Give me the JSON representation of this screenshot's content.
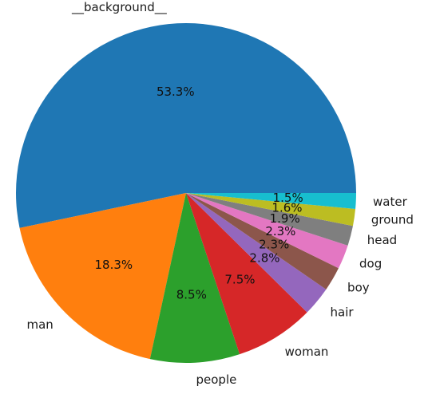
{
  "chart_data": {
    "type": "pie",
    "title": "",
    "start_angle_deg": 0,
    "direction": "counterclockwise",
    "slices": [
      {
        "label": "__background__",
        "pct_text": "53.3%",
        "value": 53.3,
        "color": "#1f77b4"
      },
      {
        "label": "man",
        "pct_text": "18.3%",
        "value": 18.3,
        "color": "#ff7f0e"
      },
      {
        "label": "people",
        "pct_text": "8.5%",
        "value": 8.5,
        "color": "#2ca02c"
      },
      {
        "label": "woman",
        "pct_text": "7.5%",
        "value": 7.5,
        "color": "#d62728"
      },
      {
        "label": "hair",
        "pct_text": "2.8%",
        "value": 2.8,
        "color": "#9467bd"
      },
      {
        "label": "boy",
        "pct_text": "2.3%",
        "value": 2.3,
        "color": "#8c564b"
      },
      {
        "label": "dog",
        "pct_text": "2.3%",
        "value": 2.3,
        "color": "#e377c2"
      },
      {
        "label": "head",
        "pct_text": "1.9%",
        "value": 1.9,
        "color": "#7f7f7f"
      },
      {
        "label": "ground",
        "pct_text": "1.6%",
        "value": 1.6,
        "color": "#bcbd22"
      },
      {
        "label": "water",
        "pct_text": "1.5%",
        "value": 1.5,
        "color": "#17becf"
      }
    ]
  }
}
